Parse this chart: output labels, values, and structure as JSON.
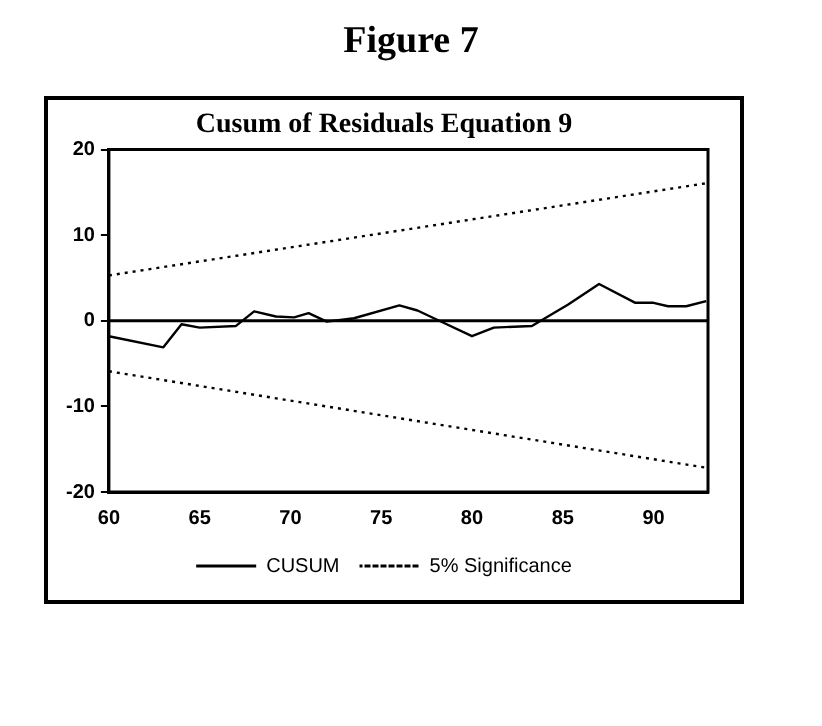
{
  "chart_data": {
    "type": "line",
    "title": "Figure 7",
    "subtitle": "Cusum of Residuals Equation 9",
    "xlim": [
      60,
      93
    ],
    "xticks": [
      60,
      65,
      70,
      75,
      80,
      85,
      90
    ],
    "ylim": [
      -20,
      20
    ],
    "yticks": [
      20,
      10,
      0,
      -10,
      -20
    ],
    "series": [
      {
        "name": "CUSUM",
        "color": "#000000",
        "line_style": "solid",
        "x": [
          60,
          63,
          64,
          65,
          67,
          68,
          69.2,
          70.2,
          71,
          72,
          73.5,
          76,
          77,
          78.4,
          80,
          81.2,
          83.3,
          85.3,
          87,
          89,
          90,
          90.8,
          91.8,
          92.9
        ],
        "values": [
          -1.8,
          -3.1,
          -0.4,
          -0.8,
          -0.6,
          1.1,
          0.5,
          0.4,
          0.9,
          -0.1,
          0.3,
          1.8,
          1.2,
          -0.2,
          -1.8,
          -0.8,
          -0.6,
          1.9,
          4.3,
          2.1,
          2.1,
          1.7,
          1.7,
          2.3
        ]
      },
      {
        "name": "5% Significance",
        "color": "#000000",
        "line_style": "dotted",
        "x": [
          60,
          93
        ],
        "values": [
          5.3,
          16.1
        ]
      },
      {
        "color": "#000000",
        "line_style": "dotted",
        "x": [
          60,
          93
        ],
        "values": [
          -5.9,
          -17.2
        ]
      }
    ],
    "ref_lines": [
      {
        "axis": "y",
        "value": 0,
        "color": "#000000",
        "line_style": "solid"
      }
    ],
    "grid": false,
    "legend": "bottom",
    "marker": "none"
  }
}
